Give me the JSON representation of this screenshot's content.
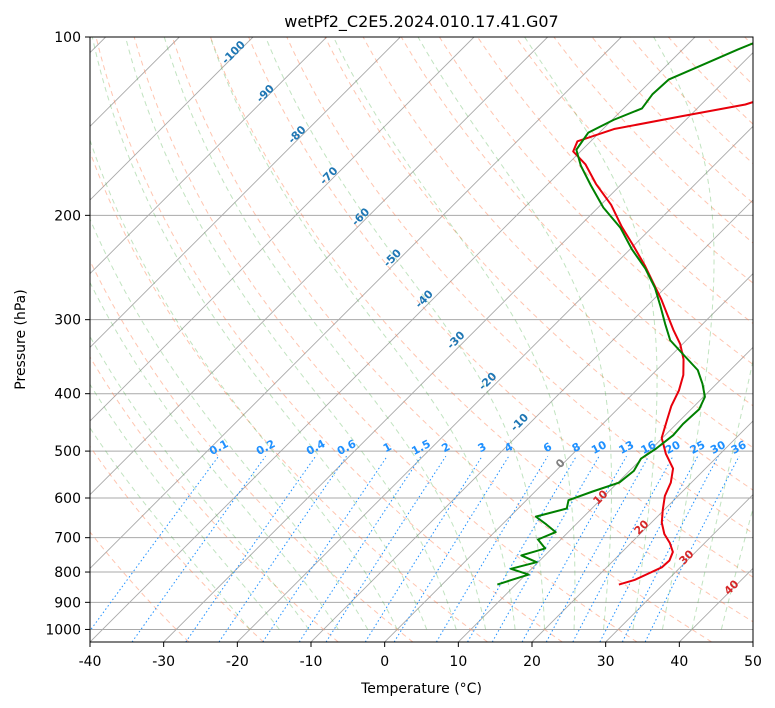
{
  "chart_data": {
    "type": "line",
    "title": "wetPf2_C2E5.2024.010.17.41.G07",
    "xlabel": "Temperature (°C)",
    "ylabel": "Pressure (hPa)",
    "xlim": [
      -40,
      50
    ],
    "ylim": [
      1050,
      100
    ],
    "x_ticks": [
      "-40",
      "-30",
      "-20",
      "-10",
      "0",
      "10",
      "20",
      "30",
      "40",
      "50"
    ],
    "y_ticks": [
      "100",
      "200",
      "300",
      "400",
      "500",
      "600",
      "700",
      "800",
      "900",
      "1000"
    ],
    "series": [
      {
        "name": "Temperature",
        "color": "#e8000b",
        "points": [
          [
            24.0,
            840
          ],
          [
            25.5,
            825
          ],
          [
            26.5,
            805
          ],
          [
            27.5,
            785
          ],
          [
            27.6,
            765
          ],
          [
            26.9,
            740
          ],
          [
            25.3,
            715
          ],
          [
            23.3,
            690
          ],
          [
            21.4,
            660
          ],
          [
            19.8,
            628
          ],
          [
            18.2,
            595
          ],
          [
            17.2,
            565
          ],
          [
            15.6,
            535
          ],
          [
            12.6,
            505
          ],
          [
            9.9,
            475
          ],
          [
            8.3,
            445
          ],
          [
            6.9,
            420
          ],
          [
            5.8,
            395
          ],
          [
            4.3,
            372
          ],
          [
            2.2,
            350
          ],
          [
            -0.3,
            330
          ],
          [
            -3.2,
            312
          ],
          [
            -6.1,
            294
          ],
          [
            -9.0,
            277
          ],
          [
            -12.3,
            260
          ],
          [
            -15.8,
            243
          ],
          [
            -19.8,
            226
          ],
          [
            -24.2,
            209
          ],
          [
            -28.6,
            192
          ],
          [
            -33.5,
            177
          ],
          [
            -37.6,
            164
          ],
          [
            -41.0,
            156
          ],
          [
            -41.8,
            150
          ],
          [
            -38.5,
            143
          ],
          [
            -31.0,
            136
          ],
          [
            -24.0,
            130
          ],
          [
            -20.6,
            124
          ],
          [
            -19.1,
            118
          ],
          [
            -17.5,
            112
          ],
          [
            -16.0,
            106
          ],
          [
            -14.7,
            100
          ]
        ]
      },
      {
        "name": "Dewpoint",
        "color": "#008000",
        "points": [
          [
            7.5,
            840
          ],
          [
            8.8,
            825
          ],
          [
            10.4,
            808
          ],
          [
            7.2,
            790
          ],
          [
            9.8,
            770
          ],
          [
            6.8,
            750
          ],
          [
            9.1,
            730
          ],
          [
            6.9,
            705
          ],
          [
            8.3,
            685
          ],
          [
            6.0,
            665
          ],
          [
            3.5,
            645
          ],
          [
            6.6,
            625
          ],
          [
            5.7,
            605
          ],
          [
            7.8,
            585
          ],
          [
            10.2,
            565
          ],
          [
            10.6,
            540
          ],
          [
            9.9,
            515
          ],
          [
            10.6,
            495
          ],
          [
            11.1,
            470
          ],
          [
            10.9,
            450
          ],
          [
            11.1,
            425
          ],
          [
            10.2,
            405
          ],
          [
            8.1,
            385
          ],
          [
            5.6,
            365
          ],
          [
            1.8,
            345
          ],
          [
            -2.2,
            325
          ],
          [
            -5.1,
            305
          ],
          [
            -8.1,
            285
          ],
          [
            -11.4,
            265
          ],
          [
            -15.3,
            246
          ],
          [
            -19.8,
            228
          ],
          [
            -24.2,
            210
          ],
          [
            -29.3,
            194
          ],
          [
            -34.0,
            178
          ],
          [
            -38.0,
            165
          ],
          [
            -40.8,
            155
          ],
          [
            -41.5,
            145
          ],
          [
            -39.8,
            138
          ],
          [
            -37.5,
            132
          ],
          [
            -38.0,
            125
          ],
          [
            -37.8,
            118
          ],
          [
            -35.0,
            111
          ],
          [
            -32.5,
            105
          ],
          [
            -30.0,
            100
          ]
        ]
      }
    ],
    "dry_adiabat_labels": [
      "-100",
      "-90",
      "-80",
      "-70",
      "-60",
      "-50",
      "-40",
      "-30",
      "-20",
      "-10"
    ],
    "mixing_ratio_labels": [
      "0.1",
      "0.2",
      "0.4",
      "0.6",
      "1",
      "1.5",
      "2",
      "3",
      "4",
      "6",
      "8",
      "10",
      "13",
      "16",
      "20",
      "25",
      "30",
      "36"
    ],
    "mixing_ratio_values": [
      0.1,
      0.2,
      0.4,
      0.6,
      1,
      1.5,
      2,
      3,
      4,
      6,
      8,
      10,
      13,
      16,
      20,
      25,
      30,
      36
    ],
    "moist_adiabat_labels": [
      "0",
      "10",
      "20",
      "30",
      "40"
    ],
    "grid": true,
    "colors": {
      "temperature": "#e8000b",
      "dewpoint": "#008000",
      "isotherm": "#a9a9a9",
      "dry_adiabat": "#ff7f50",
      "moist_adiabat": "#4daf4a",
      "mixing_ratio": "#1e90ff",
      "dry_label": "#1f77b4",
      "moist_label": "#d62728",
      "zero_label": "#808080"
    }
  }
}
